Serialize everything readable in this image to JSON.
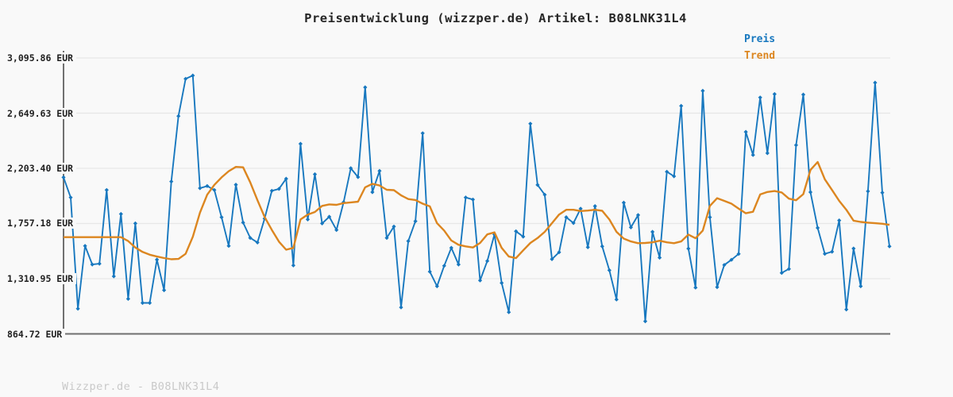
{
  "header": {
    "title": "Preisentwicklung (wizzper.de) Artikel: B08LNK31L4"
  },
  "legend": {
    "preis_label": "Preis",
    "trend_label": "Trend"
  },
  "watermark": "Wizzper.de - B08LNK31L4",
  "colors": {
    "preis": "#1878bf",
    "trend": "#dc8620",
    "grid": "#e7e7e7",
    "axis": "#707070",
    "background": "#f9f9f9",
    "title_text": "#262626",
    "tick_text": "#1f1f1f",
    "watermark_text": "#c9c9c9"
  },
  "chart_data": {
    "type": "line",
    "title": "Preisentwicklung (wizzper.de) Artikel: B08LNK31L4",
    "xlabel": "",
    "ylabel": "EUR",
    "ylim": [
      864.72,
      3095.86
    ],
    "grid": "horizontal",
    "legend_position": "top-right",
    "y_ticks": [
      {
        "label": "3,095.86 EUR",
        "value": 3095.86
      },
      {
        "label": "2,649.63 EUR",
        "value": 2649.63
      },
      {
        "label": "2,203.40 EUR",
        "value": 2203.4
      },
      {
        "label": "1,757.18 EUR",
        "value": 1757.18
      },
      {
        "label": "1,310.95 EUR",
        "value": 1310.95
      },
      {
        "label": "864.72 EUR",
        "value": 864.72
      }
    ],
    "series": [
      {
        "name": "Preis",
        "color": "#1878bf",
        "markers": true,
        "values": [
          2130,
          1968,
          1068,
          1576,
          1426,
          1432,
          2028,
          1330,
          1834,
          1148,
          1758,
          1115,
          1115,
          1465,
          1218,
          2097,
          2626,
          2927,
          2954,
          2043,
          2060,
          2028,
          1808,
          1576,
          2071,
          1765,
          1641,
          1604,
          1797,
          2022,
          2037,
          2119,
          1418,
          2402,
          1790,
          2155,
          1758,
          1812,
          1705,
          1930,
          2204,
          2133,
          2858,
          2011,
          2183,
          1641,
          1733,
          1079,
          1615,
          1776,
          2487,
          1368,
          1250,
          1415,
          1561,
          1426,
          1968,
          1951,
          1297,
          1454,
          1669,
          1276,
          1040,
          1694,
          1651,
          2564,
          2069,
          1990,
          1469,
          1525,
          1808,
          1761,
          1877,
          1565,
          1898,
          1572,
          1379,
          1143,
          1926,
          1726,
          1825,
          967,
          1690,
          1481,
          2176,
          2139,
          2708,
          1554,
          1239,
          2830,
          1808,
          1243,
          1422,
          1464,
          1511,
          2498,
          2311,
          2776,
          2326,
          2804,
          1358,
          1390,
          2391,
          2800,
          2011,
          1722,
          1512,
          1529,
          1782,
          1062,
          1555,
          1250,
          2018,
          2896,
          2007,
          1572
        ]
      },
      {
        "name": "Trend",
        "color": "#dc8620",
        "markers": false,
        "values": [
          1647,
          1647,
          1647,
          1647,
          1647,
          1647,
          1647,
          1647,
          1647,
          1615,
          1563,
          1527,
          1505,
          1490,
          1478,
          1468,
          1471,
          1512,
          1650,
          1845,
          1990,
          2070,
          2130,
          2180,
          2215,
          2212,
          2090,
          1945,
          1810,
          1705,
          1610,
          1545,
          1560,
          1790,
          1830,
          1850,
          1900,
          1912,
          1908,
          1922,
          1928,
          1934,
          2050,
          2078,
          2065,
          2030,
          2027,
          1985,
          1955,
          1947,
          1918,
          1896,
          1760,
          1700,
          1620,
          1585,
          1572,
          1563,
          1600,
          1669,
          1686,
          1560,
          1490,
          1477,
          1540,
          1600,
          1640,
          1690,
          1760,
          1830,
          1868,
          1868,
          1858,
          1862,
          1868,
          1860,
          1790,
          1690,
          1635,
          1612,
          1598,
          1600,
          1605,
          1618,
          1605,
          1598,
          1612,
          1668,
          1638,
          1700,
          1900,
          1962,
          1940,
          1918,
          1878,
          1840,
          1852,
          1992,
          2012,
          2020,
          2008,
          1958,
          1945,
          1995,
          2190,
          2255,
          2115,
          2028,
          1940,
          1868,
          1780,
          1770,
          1764,
          1760,
          1755,
          1746
        ]
      }
    ]
  }
}
